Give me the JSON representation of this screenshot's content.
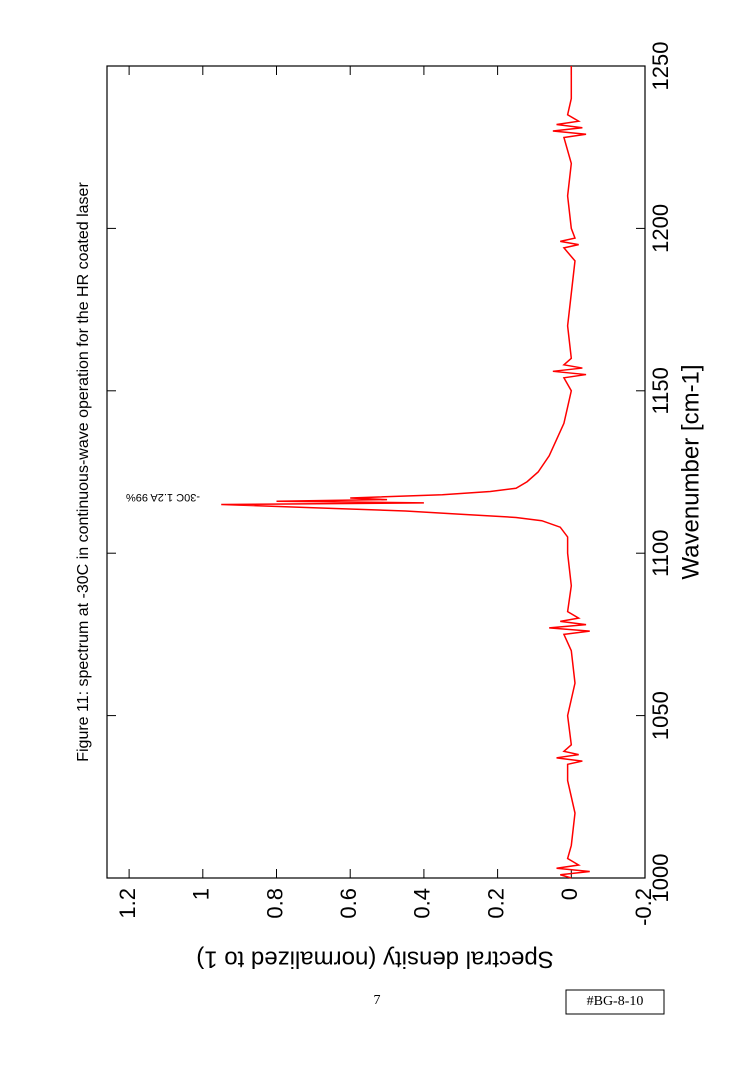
{
  "chart_data": {
    "type": "line",
    "title": "Figure 11: spectrum at -30C in continuous-wave operation for the HR coated laser",
    "x_label": "Wavenumber [cm-1]",
    "y_label": "Spectral density (normalized to 1)",
    "legend_label": "-30C 1.2A 99%",
    "color": "#ff0000",
    "x": [
      1000,
      1001,
      1002,
      1003,
      1004,
      1006,
      1010,
      1020,
      1030,
      1035,
      1036,
      1037,
      1038,
      1039,
      1041,
      1050,
      1060,
      1070,
      1075,
      1076,
      1077,
      1078,
      1079,
      1080,
      1082,
      1090,
      1100,
      1105,
      1108,
      1110,
      1111,
      1112,
      1113,
      1114,
      1115,
      1115.5,
      1116,
      1116.5,
      1117,
      1118,
      1119,
      1120,
      1122,
      1125,
      1130,
      1135,
      1140,
      1145,
      1150,
      1154,
      1155,
      1156,
      1157,
      1158,
      1160,
      1170,
      1180,
      1190,
      1194,
      1195,
      1196,
      1197,
      1200,
      1210,
      1220,
      1228,
      1229,
      1230,
      1231,
      1232,
      1233,
      1235,
      1240,
      1250
    ],
    "values": [
      0,
      0.03,
      -0.05,
      0.04,
      -0.02,
      0.01,
      0,
      -0.01,
      0.01,
      0.01,
      -0.03,
      0.04,
      -0.02,
      0.02,
      0,
      0.01,
      -0.01,
      0,
      0.02,
      -0.05,
      0.06,
      -0.04,
      0.03,
      -0.02,
      0.01,
      0,
      0.01,
      0.01,
      0.03,
      0.08,
      0.15,
      0.3,
      0.45,
      0.7,
      0.95,
      0.4,
      0.8,
      0.5,
      0.6,
      0.35,
      0.22,
      0.15,
      0.12,
      0.09,
      0.06,
      0.04,
      0.02,
      0.01,
      0,
      0.02,
      -0.04,
      0.05,
      -0.03,
      0.02,
      0,
      0.01,
      0,
      -0.01,
      0.02,
      -0.02,
      0.03,
      -0.01,
      0,
      0.01,
      0,
      0.02,
      -0.04,
      0.05,
      -0.03,
      0.04,
      -0.02,
      0.01,
      0,
      0
    ],
    "xlim": [
      1000,
      1250
    ],
    "xticks": [
      1000,
      1050,
      1100,
      1150,
      1200,
      1250
    ],
    "ylim": [
      -0.2,
      1.26
    ],
    "yticks": [
      -0.2,
      0,
      0.2,
      0.4,
      0.6,
      0.8,
      1,
      1.2
    ]
  },
  "page_number": "7",
  "tag": "#BG-8-10"
}
